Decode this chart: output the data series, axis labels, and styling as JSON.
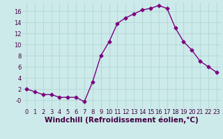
{
  "x": [
    0,
    1,
    2,
    3,
    4,
    5,
    6,
    7,
    8,
    9,
    10,
    11,
    12,
    13,
    14,
    15,
    16,
    17,
    18,
    19,
    20,
    21,
    22,
    23
  ],
  "y": [
    2,
    1.5,
    1,
    1,
    0.5,
    0.5,
    0.5,
    -0.3,
    3.3,
    8,
    10.5,
    13.8,
    14.8,
    15.5,
    16.2,
    16.5,
    17,
    16.5,
    13,
    10.5,
    9,
    7,
    6,
    5
  ],
  "line_color": "#7b0080",
  "marker": "D",
  "marker_size": 2.5,
  "background_color": "#cdeaea",
  "grid_color": "#b8d8d8",
  "xlabel": "Windchill (Refroidissement éolien,°C)",
  "xlabel_fontsize": 7.5,
  "ylim": [
    -1.5,
    17.5
  ],
  "xlim": [
    -0.5,
    23.5
  ],
  "yticks": [
    0,
    2,
    4,
    6,
    8,
    10,
    12,
    14,
    16
  ],
  "xticks": [
    0,
    1,
    2,
    3,
    4,
    5,
    6,
    7,
    8,
    9,
    10,
    11,
    12,
    13,
    14,
    15,
    16,
    17,
    18,
    19,
    20,
    21,
    22,
    23
  ],
  "tick_fontsize": 6,
  "line_width": 1.0,
  "text_color": "#400040"
}
